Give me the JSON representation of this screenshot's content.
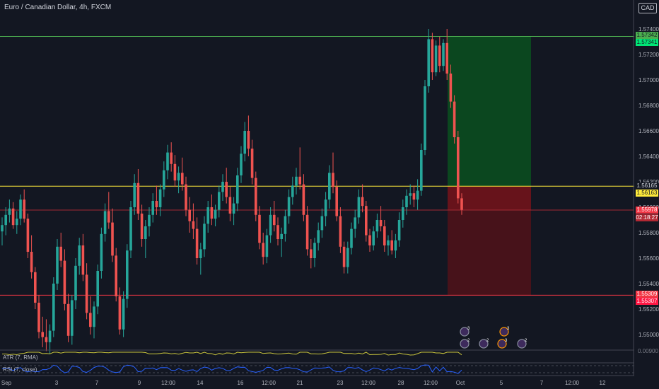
{
  "header": {
    "symbol_title": "Euro / Canadian Dollar, 4h, FXCM",
    "currency_badge": "CAD"
  },
  "indicators": {
    "atr_label": "ATR (7, RMA)",
    "rsi_label": "RSI (7, close)",
    "atr_value_label": "0.00900"
  },
  "price_tags": {
    "target_upper": "1.57342",
    "target_lower": "1.57341",
    "entry_upper": "1.56165",
    "entry_lower": "1.56163",
    "current": "1.55978",
    "countdown": "02:18:27",
    "stop_upper": "1.55309",
    "stop_lower": "1.55307"
  },
  "event_badges": [
    "3",
    "3",
    "2",
    "2",
    "3",
    "2"
  ],
  "colors": {
    "background": "#131722",
    "up": "#26a69a",
    "down": "#ef5350",
    "target_line": "#4caf50",
    "entry_line": "#ffeb3b",
    "stop_line": "#f23645",
    "profit_zone": "#0b4d1f",
    "loss_zone": "#5a1218",
    "atr_line": "#c9c53c",
    "rsi_line": "#2962ff"
  },
  "chart_data": {
    "type": "candlestick",
    "symbol": "Euro / Canadian Dollar",
    "timeframe": "4h",
    "source": "FXCM",
    "y_tick_labels": [
      "1.57400",
      "1.57200",
      "1.57000",
      "1.56800",
      "1.56600",
      "1.56400",
      "1.56200",
      "1.56000",
      "1.55800",
      "1.55600",
      "1.55400",
      "1.55200",
      "1.55000"
    ],
    "ylim": [
      1.548,
      1.575
    ],
    "x_tick_labels": [
      "Sep",
      "3",
      "7",
      "9",
      "12:00",
      "14",
      "16",
      "12:00",
      "21",
      "23",
      "12:00",
      "28",
      "12:00",
      "Oct",
      "5",
      "7",
      "12:00",
      "12"
    ],
    "series": [
      {
        "name": "EURCAD",
        "ohlc": [
          [
            1.5581,
            1.5592,
            1.557,
            1.5586
          ],
          [
            1.5586,
            1.56,
            1.5578,
            1.5594
          ],
          [
            1.5594,
            1.5606,
            1.5588,
            1.5599
          ],
          [
            1.5599,
            1.5604,
            1.5583,
            1.5586
          ],
          [
            1.5586,
            1.5597,
            1.5579,
            1.5591
          ],
          [
            1.5591,
            1.561,
            1.5586,
            1.5606
          ],
          [
            1.5606,
            1.5614,
            1.5588,
            1.5591
          ],
          [
            1.5591,
            1.5595,
            1.556,
            1.5565
          ],
          [
            1.5565,
            1.5578,
            1.5544,
            1.5549
          ],
          [
            1.5549,
            1.5553,
            1.552,
            1.5525
          ],
          [
            1.5525,
            1.5531,
            1.5497,
            1.5502
          ],
          [
            1.5502,
            1.5514,
            1.549,
            1.5498
          ],
          [
            1.5498,
            1.5512,
            1.5487,
            1.5494
          ],
          [
            1.5494,
            1.5508,
            1.5485,
            1.5503
          ],
          [
            1.5503,
            1.5545,
            1.5498,
            1.554
          ],
          [
            1.554,
            1.5575,
            1.5535,
            1.5569
          ],
          [
            1.5569,
            1.558,
            1.5553,
            1.5558
          ],
          [
            1.5558,
            1.5567,
            1.5519,
            1.5524
          ],
          [
            1.5524,
            1.5532,
            1.5494,
            1.5499
          ],
          [
            1.5499,
            1.5531,
            1.5492,
            1.5527
          ],
          [
            1.5527,
            1.556,
            1.552,
            1.5554
          ],
          [
            1.5554,
            1.5576,
            1.5547,
            1.557
          ],
          [
            1.557,
            1.5579,
            1.5542,
            1.5547
          ],
          [
            1.5547,
            1.5556,
            1.5512,
            1.5517
          ],
          [
            1.5517,
            1.553,
            1.55,
            1.5506
          ],
          [
            1.5506,
            1.5526,
            1.5497,
            1.5522
          ],
          [
            1.5522,
            1.5555,
            1.5516,
            1.555
          ],
          [
            1.555,
            1.5584,
            1.5544,
            1.5579
          ],
          [
            1.5579,
            1.5603,
            1.5573,
            1.5597
          ],
          [
            1.5597,
            1.5612,
            1.5583,
            1.5588
          ],
          [
            1.5588,
            1.5599,
            1.5557,
            1.5562
          ],
          [
            1.5562,
            1.5568,
            1.5526,
            1.553
          ],
          [
            1.553,
            1.5537,
            1.55,
            1.5504
          ],
          [
            1.5504,
            1.5534,
            1.5498,
            1.5528
          ],
          [
            1.5528,
            1.5571,
            1.5521,
            1.5566
          ],
          [
            1.5566,
            1.5605,
            1.556,
            1.56
          ],
          [
            1.56,
            1.5626,
            1.5594,
            1.5619
          ],
          [
            1.5619,
            1.563,
            1.559,
            1.5595
          ],
          [
            1.5595,
            1.5602,
            1.5569,
            1.5575
          ],
          [
            1.5575,
            1.559,
            1.556,
            1.5585
          ],
          [
            1.5585,
            1.56,
            1.5577,
            1.5594
          ],
          [
            1.5594,
            1.5611,
            1.5588,
            1.5605
          ],
          [
            1.5605,
            1.5617,
            1.5594,
            1.56
          ],
          [
            1.56,
            1.5618,
            1.5593,
            1.5614
          ],
          [
            1.5614,
            1.5636,
            1.5608,
            1.5629
          ],
          [
            1.5629,
            1.5649,
            1.5622,
            1.5643
          ],
          [
            1.5643,
            1.5651,
            1.5628,
            1.5634
          ],
          [
            1.5634,
            1.5641,
            1.5616,
            1.5621
          ],
          [
            1.5621,
            1.5632,
            1.5611,
            1.5627
          ],
          [
            1.5627,
            1.5639,
            1.5613,
            1.5618
          ],
          [
            1.5618,
            1.5624,
            1.5593,
            1.5598
          ],
          [
            1.5598,
            1.5608,
            1.558,
            1.5589
          ],
          [
            1.5589,
            1.5603,
            1.5575,
            1.5583
          ],
          [
            1.5583,
            1.5592,
            1.5555,
            1.556
          ],
          [
            1.556,
            1.5572,
            1.5547,
            1.5567
          ],
          [
            1.5567,
            1.5593,
            1.5561,
            1.5587
          ],
          [
            1.5587,
            1.5605,
            1.558,
            1.56
          ],
          [
            1.56,
            1.561,
            1.5586,
            1.5591
          ],
          [
            1.5591,
            1.5602,
            1.5585,
            1.5598
          ],
          [
            1.5598,
            1.5617,
            1.5592,
            1.5612
          ],
          [
            1.5612,
            1.5626,
            1.5605,
            1.562
          ],
          [
            1.562,
            1.5631,
            1.5603,
            1.5608
          ],
          [
            1.5608,
            1.5616,
            1.5589,
            1.5595
          ],
          [
            1.5595,
            1.5608,
            1.5586,
            1.5603
          ],
          [
            1.5603,
            1.5631,
            1.5597,
            1.5625
          ],
          [
            1.5625,
            1.5648,
            1.5619,
            1.5642
          ],
          [
            1.5642,
            1.5667,
            1.5636,
            1.566
          ],
          [
            1.566,
            1.5672,
            1.564,
            1.5646
          ],
          [
            1.5646,
            1.5653,
            1.5618,
            1.5623
          ],
          [
            1.5623,
            1.5628,
            1.5589,
            1.5594
          ],
          [
            1.5594,
            1.5601,
            1.5567,
            1.5572
          ],
          [
            1.5572,
            1.558,
            1.5555,
            1.5561
          ],
          [
            1.5561,
            1.5583,
            1.5556,
            1.5578
          ],
          [
            1.5578,
            1.56,
            1.5572,
            1.5594
          ],
          [
            1.5594,
            1.5605,
            1.5581,
            1.5586
          ],
          [
            1.5586,
            1.5592,
            1.557,
            1.5575
          ],
          [
            1.5575,
            1.5584,
            1.5561,
            1.5579
          ],
          [
            1.5579,
            1.5598,
            1.5573,
            1.5593
          ],
          [
            1.5593,
            1.5614,
            1.5587,
            1.5608
          ],
          [
            1.5608,
            1.5624,
            1.5602,
            1.5617
          ],
          [
            1.5617,
            1.5631,
            1.561,
            1.5624
          ],
          [
            1.5624,
            1.5647,
            1.5614,
            1.5618
          ],
          [
            1.5618,
            1.5626,
            1.5589,
            1.5594
          ],
          [
            1.5594,
            1.5601,
            1.5562,
            1.5567
          ],
          [
            1.5567,
            1.5575,
            1.5552,
            1.556
          ],
          [
            1.556,
            1.5576,
            1.5553,
            1.5572
          ],
          [
            1.5572,
            1.5588,
            1.5566,
            1.5582
          ],
          [
            1.5582,
            1.5599,
            1.5576,
            1.5593
          ],
          [
            1.5593,
            1.5612,
            1.5585,
            1.5606
          ],
          [
            1.5606,
            1.5633,
            1.5599,
            1.5627
          ],
          [
            1.5627,
            1.5643,
            1.5611,
            1.5616
          ],
          [
            1.5616,
            1.5621,
            1.5589,
            1.5593
          ],
          [
            1.5593,
            1.56,
            1.5564,
            1.5569
          ],
          [
            1.5569,
            1.5573,
            1.5548,
            1.5553
          ],
          [
            1.5553,
            1.5573,
            1.5548,
            1.5568
          ],
          [
            1.5568,
            1.5588,
            1.5563,
            1.5583
          ],
          [
            1.5583,
            1.5598,
            1.5576,
            1.5592
          ],
          [
            1.5592,
            1.5614,
            1.5587,
            1.5608
          ],
          [
            1.5608,
            1.5618,
            1.5596,
            1.5601
          ],
          [
            1.5601,
            1.5605,
            1.5573,
            1.5578
          ],
          [
            1.5578,
            1.5583,
            1.5565,
            1.557
          ],
          [
            1.557,
            1.5585,
            1.5566,
            1.5581
          ],
          [
            1.5581,
            1.5595,
            1.5576,
            1.559
          ],
          [
            1.559,
            1.5601,
            1.5581,
            1.5585
          ],
          [
            1.5585,
            1.559,
            1.5565,
            1.557
          ],
          [
            1.557,
            1.5578,
            1.5562,
            1.5574
          ],
          [
            1.5574,
            1.5582,
            1.5563,
            1.5566
          ],
          [
            1.5566,
            1.5579,
            1.556,
            1.5574
          ],
          [
            1.5574,
            1.5596,
            1.5569,
            1.559
          ],
          [
            1.559,
            1.5606,
            1.5584,
            1.56
          ],
          [
            1.56,
            1.5614,
            1.5594,
            1.5609
          ],
          [
            1.5609,
            1.5618,
            1.5602,
            1.5611
          ],
          [
            1.5611,
            1.5617,
            1.56,
            1.5606
          ],
          [
            1.5606,
            1.5622,
            1.5598,
            1.5613
          ],
          [
            1.5613,
            1.565,
            1.5609,
            1.5645
          ],
          [
            1.5645,
            1.57,
            1.5641,
            1.5695
          ],
          [
            1.5695,
            1.574,
            1.569,
            1.5732
          ],
          [
            1.5732,
            1.5737,
            1.57,
            1.5706
          ],
          [
            1.5706,
            1.5731,
            1.5703,
            1.5727
          ],
          [
            1.5727,
            1.5734,
            1.5706,
            1.5711
          ],
          [
            1.5711,
            1.5732,
            1.5707,
            1.5729
          ],
          [
            1.5729,
            1.574,
            1.57,
            1.5705
          ],
          [
            1.5705,
            1.5712,
            1.5678,
            1.5683
          ],
          [
            1.5683,
            1.5688,
            1.565,
            1.5655
          ],
          [
            1.5655,
            1.566,
            1.5603,
            1.5607
          ],
          [
            1.5607,
            1.5611,
            1.5594,
            1.5598
          ]
        ]
      }
    ],
    "horizontal_levels": [
      {
        "name": "target",
        "value": 1.57342
      },
      {
        "name": "entry",
        "value": 1.56165
      },
      {
        "name": "current",
        "value": 1.55978
      },
      {
        "name": "stop",
        "value": 1.55309
      }
    ],
    "position": {
      "type": "long",
      "entry": 1.56165,
      "target": 1.57342,
      "stop": 1.55309
    },
    "grid": false
  }
}
